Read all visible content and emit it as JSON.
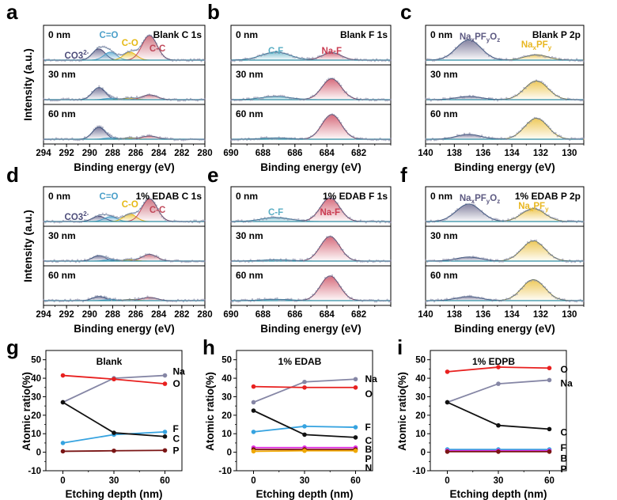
{
  "colors": {
    "co3": "#4d4d7a",
    "co": "#4a9fc9",
    "c_o": "#e5b915",
    "cc": "#c0485a",
    "cf": "#5aaec4",
    "naf": "#c93a50",
    "naxpfyoz": "#5d5a82",
    "naxpfy": "#e8b722",
    "env": "#1f4f78",
    "base": "#2f8ea3",
    "na_line": "#8586a5",
    "o_line": "#e8201f",
    "c_line": "#111111",
    "f_line": "#36a3e0",
    "p_line": "#7a1515",
    "b_line": "#e02be0",
    "n_line": "#f0a800"
  },
  "xps_panels": [
    {
      "panel_label": "a",
      "element": "C 1s",
      "title": "Blank C 1s",
      "xlim": [
        294,
        280
      ],
      "xticks": [
        "294",
        "292",
        "290",
        "288",
        "286",
        "284",
        "282",
        "280"
      ],
      "xlabel": "Binding energy (eV)",
      "ylabel": "Intensity (a.u.)",
      "peaks": [
        {
          "label": "CO3",
          "label_sup": "2-",
          "center": 289.2,
          "width": 0.55,
          "color_key": "co3"
        },
        {
          "label": "C=O",
          "label_sup": "",
          "center": 288.2,
          "width": 0.55,
          "color_key": "co"
        },
        {
          "label": "C-O",
          "label_sup": "",
          "center": 286.5,
          "width": 0.55,
          "color_key": "c_o"
        },
        {
          "label": "C-C",
          "label_sup": "",
          "center": 284.8,
          "width": 0.65,
          "color_key": "cc"
        }
      ],
      "rows": [
        {
          "depth": "0 nm",
          "amps": [
            0.42,
            0.3,
            0.3,
            0.92
          ]
        },
        {
          "depth": "30 nm",
          "amps": [
            0.45,
            0.05,
            0.06,
            0.18
          ]
        },
        {
          "depth": "60 nm",
          "amps": [
            0.45,
            0.05,
            0.05,
            0.12
          ]
        }
      ]
    },
    {
      "panel_label": "b",
      "element": "F 1s",
      "title": "Blank F 1s",
      "xlim": [
        690,
        680
      ],
      "xticks": [
        "690",
        "688",
        "686",
        "684",
        "682"
      ],
      "xlabel": "Binding energy (eV)",
      "ylabel": "",
      "peaks": [
        {
          "label": "C-F",
          "label_sup": "",
          "center": 687.2,
          "width": 0.9,
          "color_key": "cf"
        },
        {
          "label": "Na-F",
          "label_sup": "",
          "center": 683.7,
          "width": 0.6,
          "color_key": "naf"
        }
      ],
      "rows": [
        {
          "depth": "0 nm",
          "amps": [
            0.3,
            0.28
          ]
        },
        {
          "depth": "30 nm",
          "amps": [
            0.12,
            0.78
          ]
        },
        {
          "depth": "60 nm",
          "amps": [
            0.05,
            0.92
          ]
        }
      ]
    },
    {
      "panel_label": "c",
      "element": "P 2p",
      "title": "Blank P 2p",
      "xlim": [
        140,
        129
      ],
      "xticks": [
        "140",
        "138",
        "136",
        "134",
        "132",
        "130"
      ],
      "xlabel": "Binding energy (eV)",
      "ylabel": "",
      "peaks": [
        {
          "label": "NaxPFyOz",
          "label_sup": "",
          "center": 137.0,
          "width": 0.85,
          "color_key": "naxpfyoz"
        },
        {
          "label": "NaxPFy",
          "label_sup": "",
          "center": 132.3,
          "width": 0.8,
          "color_key": "naxpfy"
        }
      ],
      "rows": [
        {
          "depth": "0 nm",
          "amps": [
            0.75,
            0.2
          ]
        },
        {
          "depth": "30 nm",
          "amps": [
            0.12,
            0.7
          ]
        },
        {
          "depth": "60 nm",
          "amps": [
            0.18,
            0.78
          ]
        }
      ]
    },
    {
      "panel_label": "d",
      "element": "C 1s",
      "title": "1% EDAB C 1s",
      "xlim": [
        294,
        280
      ],
      "xticks": [
        "294",
        "292",
        "290",
        "288",
        "286",
        "284",
        "282",
        "280"
      ],
      "xlabel": "Binding energy (eV)",
      "ylabel": "Intensity (a.u.)",
      "peaks": [
        {
          "label": "CO3",
          "label_sup": "2-",
          "center": 289.2,
          "width": 0.55,
          "color_key": "co3"
        },
        {
          "label": "C=O",
          "label_sup": "",
          "center": 288.2,
          "width": 0.55,
          "color_key": "co"
        },
        {
          "label": "C-O",
          "label_sup": "",
          "center": 286.5,
          "width": 0.55,
          "color_key": "c_o"
        },
        {
          "label": "C-C",
          "label_sup": "",
          "center": 284.8,
          "width": 0.65,
          "color_key": "cc"
        }
      ],
      "rows": [
        {
          "depth": "0 nm",
          "amps": [
            0.2,
            0.18,
            0.28,
            0.85
          ]
        },
        {
          "depth": "30 nm",
          "amps": [
            0.2,
            0.05,
            0.05,
            0.25
          ]
        },
        {
          "depth": "60 nm",
          "amps": [
            0.15,
            0.04,
            0.04,
            0.12
          ]
        }
      ]
    },
    {
      "panel_label": "e",
      "element": "F 1s",
      "title": "1% EDAB F 1s",
      "xlim": [
        690,
        680
      ],
      "xticks": [
        "690",
        "688",
        "686",
        "684",
        "682"
      ],
      "xlabel": "Binding energy (eV)",
      "ylabel": "",
      "peaks": [
        {
          "label": "C-F",
          "label_sup": "",
          "center": 687.2,
          "width": 0.9,
          "color_key": "cf"
        },
        {
          "label": "Na-F",
          "label_sup": "",
          "center": 683.8,
          "width": 0.6,
          "color_key": "naf"
        }
      ],
      "rows": [
        {
          "depth": "0 nm",
          "amps": [
            0.15,
            0.88
          ]
        },
        {
          "depth": "30 nm",
          "amps": [
            0.05,
            0.92
          ]
        },
        {
          "depth": "60 nm",
          "amps": [
            0.05,
            0.92
          ]
        }
      ]
    },
    {
      "panel_label": "f",
      "element": "P 2p",
      "title": "1% EDAB P 2p",
      "xlim": [
        140,
        129
      ],
      "xticks": [
        "140",
        "138",
        "136",
        "134",
        "132",
        "130"
      ],
      "xlabel": "Binding energy (eV)",
      "ylabel": "",
      "peaks": [
        {
          "label": "NaxPFyOz",
          "label_sup": "",
          "center": 137.0,
          "width": 0.85,
          "color_key": "naxpfyoz"
        },
        {
          "label": "NaxPFy",
          "label_sup": "",
          "center": 132.5,
          "width": 0.8,
          "color_key": "naxpfy"
        }
      ],
      "rows": [
        {
          "depth": "0 nm",
          "amps": [
            0.65,
            0.48
          ]
        },
        {
          "depth": "30 nm",
          "amps": [
            0.15,
            0.75
          ]
        },
        {
          "depth": "60 nm",
          "amps": [
            0.15,
            0.78
          ]
        }
      ]
    }
  ],
  "ratio_panels": [
    {
      "panel_label": "g",
      "title": "Blank",
      "type": "line",
      "x": [
        0,
        30,
        60
      ],
      "xlim": [
        -10,
        70
      ],
      "ylim": [
        -10,
        55
      ],
      "xticks": [
        "0",
        "30",
        "60"
      ],
      "yticks": [
        "-10",
        "0",
        "10",
        "20",
        "30",
        "40",
        "50"
      ],
      "xlabel": "Etching depth (nm)",
      "ylabel": "Atomic ratio(%)",
      "series": [
        {
          "name": "Na",
          "values": [
            27.0,
            40.0,
            41.5
          ],
          "color_key": "na_line"
        },
        {
          "name": "O",
          "values": [
            41.5,
            39.5,
            37.0
          ],
          "color_key": "o_line"
        },
        {
          "name": "F",
          "values": [
            5.0,
            9.5,
            11.0
          ],
          "color_key": "f_line"
        },
        {
          "name": "C",
          "values": [
            27.0,
            10.5,
            8.5
          ],
          "color_key": "c_line"
        },
        {
          "name": "P",
          "values": [
            0.5,
            0.8,
            1.0
          ],
          "color_key": "p_line"
        }
      ]
    },
    {
      "panel_label": "h",
      "title": "1% EDAB",
      "type": "line",
      "x": [
        0,
        30,
        60
      ],
      "xlim": [
        -10,
        70
      ],
      "ylim": [
        -10,
        55
      ],
      "xticks": [
        "0",
        "30",
        "60"
      ],
      "yticks": [
        "-10",
        "0",
        "10",
        "20",
        "30",
        "40",
        "50"
      ],
      "xlabel": "Etching depth (nm)",
      "ylabel": "Atomic ratio(%)",
      "series": [
        {
          "name": "Na",
          "values": [
            27.0,
            38.0,
            39.5
          ],
          "color_key": "na_line"
        },
        {
          "name": "O",
          "values": [
            35.5,
            35.0,
            35.0
          ],
          "color_key": "o_line"
        },
        {
          "name": "F",
          "values": [
            11.0,
            14.0,
            13.5
          ],
          "color_key": "f_line"
        },
        {
          "name": "C",
          "values": [
            22.5,
            9.5,
            8.0
          ],
          "color_key": "c_line"
        },
        {
          "name": "B",
          "values": [
            2.5,
            2.5,
            2.5
          ],
          "color_key": "b_line"
        },
        {
          "name": "P",
          "values": [
            1.5,
            1.5,
            1.5
          ],
          "color_key": "p_line"
        },
        {
          "name": "N",
          "values": [
            0.5,
            0.8,
            0.8
          ],
          "color_key": "n_line"
        }
      ]
    },
    {
      "panel_label": "i",
      "title": "1% EDPB",
      "type": "line",
      "x": [
        0,
        30,
        60
      ],
      "xlim": [
        -10,
        70
      ],
      "ylim": [
        -10,
        55
      ],
      "xticks": [
        "0",
        "30",
        "60"
      ],
      "yticks": [
        "-10",
        "0",
        "10",
        "20",
        "30",
        "40",
        "50"
      ],
      "xlabel": "Etching depth (nm)",
      "ylabel": "Atomic ratio(%)",
      "series": [
        {
          "name": "O",
          "values": [
            43.5,
            46.0,
            45.5
          ],
          "color_key": "o_line"
        },
        {
          "name": "Na",
          "values": [
            27.0,
            37.0,
            39.0
          ],
          "color_key": "na_line"
        },
        {
          "name": "C",
          "values": [
            27.0,
            14.5,
            12.5
          ],
          "color_key": "c_line"
        },
        {
          "name": "F",
          "values": [
            1.5,
            1.5,
            1.5
          ],
          "color_key": "f_line"
        },
        {
          "name": "B",
          "values": [
            0.8,
            0.8,
            0.8
          ],
          "color_key": "b_line"
        },
        {
          "name": "P",
          "values": [
            0.3,
            0.3,
            0.3
          ],
          "color_key": "p_line"
        }
      ]
    }
  ],
  "chart_data": [
    {
      "type": "line",
      "panel": "g",
      "title": "Blank",
      "x": [
        0,
        30,
        60
      ],
      "xlabel": "Etching depth (nm)",
      "ylabel": "Atomic ratio(%)",
      "ylim": [
        -10,
        55
      ],
      "series": [
        {
          "name": "Na",
          "values": [
            27.0,
            40.0,
            41.5
          ]
        },
        {
          "name": "O",
          "values": [
            41.5,
            39.5,
            37.0
          ]
        },
        {
          "name": "F",
          "values": [
            5.0,
            9.5,
            11.0
          ]
        },
        {
          "name": "C",
          "values": [
            27.0,
            10.5,
            8.5
          ]
        },
        {
          "name": "P",
          "values": [
            0.5,
            0.8,
            1.0
          ]
        }
      ]
    },
    {
      "type": "line",
      "panel": "h",
      "title": "1% EDAB",
      "x": [
        0,
        30,
        60
      ],
      "xlabel": "Etching depth (nm)",
      "ylabel": "Atomic ratio(%)",
      "ylim": [
        -10,
        55
      ],
      "series": [
        {
          "name": "Na",
          "values": [
            27.0,
            38.0,
            39.5
          ]
        },
        {
          "name": "O",
          "values": [
            35.5,
            35.0,
            35.0
          ]
        },
        {
          "name": "F",
          "values": [
            11.0,
            14.0,
            13.5
          ]
        },
        {
          "name": "C",
          "values": [
            22.5,
            9.5,
            8.0
          ]
        },
        {
          "name": "B",
          "values": [
            2.5,
            2.5,
            2.5
          ]
        },
        {
          "name": "P",
          "values": [
            1.5,
            1.5,
            1.5
          ]
        },
        {
          "name": "N",
          "values": [
            0.5,
            0.8,
            0.8
          ]
        }
      ]
    },
    {
      "type": "line",
      "panel": "i",
      "title": "1% EDPB",
      "x": [
        0,
        30,
        60
      ],
      "xlabel": "Etching depth (nm)",
      "ylabel": "Atomic ratio(%)",
      "ylim": [
        -10,
        55
      ],
      "series": [
        {
          "name": "O",
          "values": [
            43.5,
            46.0,
            45.5
          ]
        },
        {
          "name": "Na",
          "values": [
            27.0,
            37.0,
            39.0
          ]
        },
        {
          "name": "C",
          "values": [
            27.0,
            14.5,
            12.5
          ]
        },
        {
          "name": "F",
          "values": [
            1.5,
            1.5,
            1.5
          ]
        },
        {
          "name": "B",
          "values": [
            0.8,
            0.8,
            0.8
          ]
        },
        {
          "name": "P",
          "values": [
            0.3,
            0.3,
            0.3
          ]
        }
      ]
    }
  ]
}
